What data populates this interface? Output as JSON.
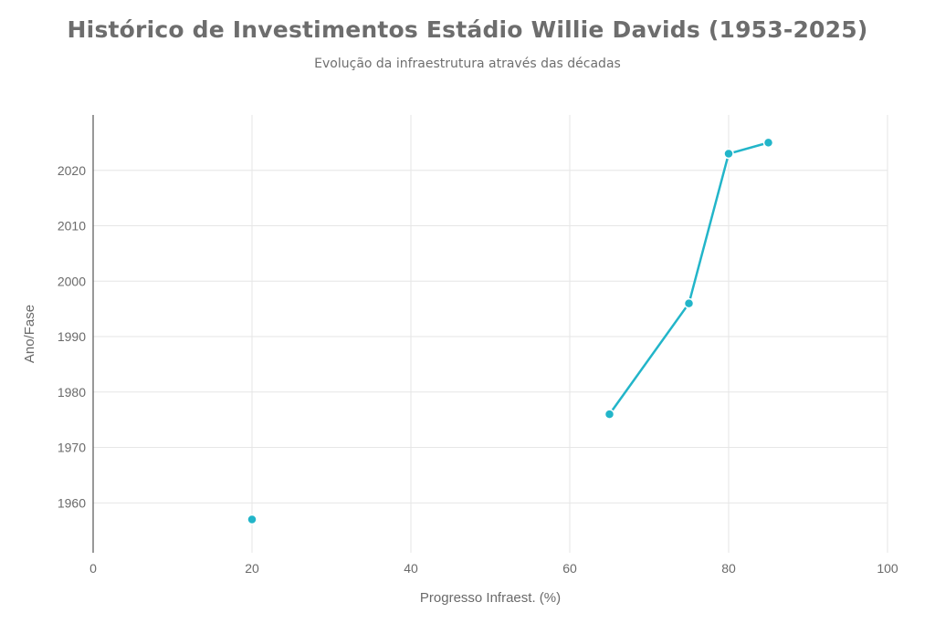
{
  "header": {
    "title": "Histórico de Investimentos Estádio Willie Davids (1953-2025)",
    "subtitle": "Evolução da infraestrutura através das décadas"
  },
  "chart_data": {
    "type": "line",
    "title": "Histórico de Investimentos Estádio Willie Davids (1953-2025)",
    "subtitle": "Evolução da infraestrutura através das décadas",
    "xlabel": "Progresso Infraest. (%)",
    "ylabel": "Ano/Fase",
    "xlim": [
      0,
      100
    ],
    "ylim": [
      1951,
      2030
    ],
    "xticks": [
      0,
      20,
      40,
      60,
      80,
      100
    ],
    "yticks": [
      1960,
      1970,
      1980,
      1990,
      2000,
      2010,
      2020
    ],
    "grid": true,
    "legend": "none",
    "color": "#22b5c9",
    "series": [
      {
        "x": [
          20
        ],
        "y": [
          1957
        ]
      },
      {
        "x": [
          65,
          75,
          80,
          85
        ],
        "y": [
          1976,
          1996,
          2023,
          2025
        ]
      }
    ]
  }
}
